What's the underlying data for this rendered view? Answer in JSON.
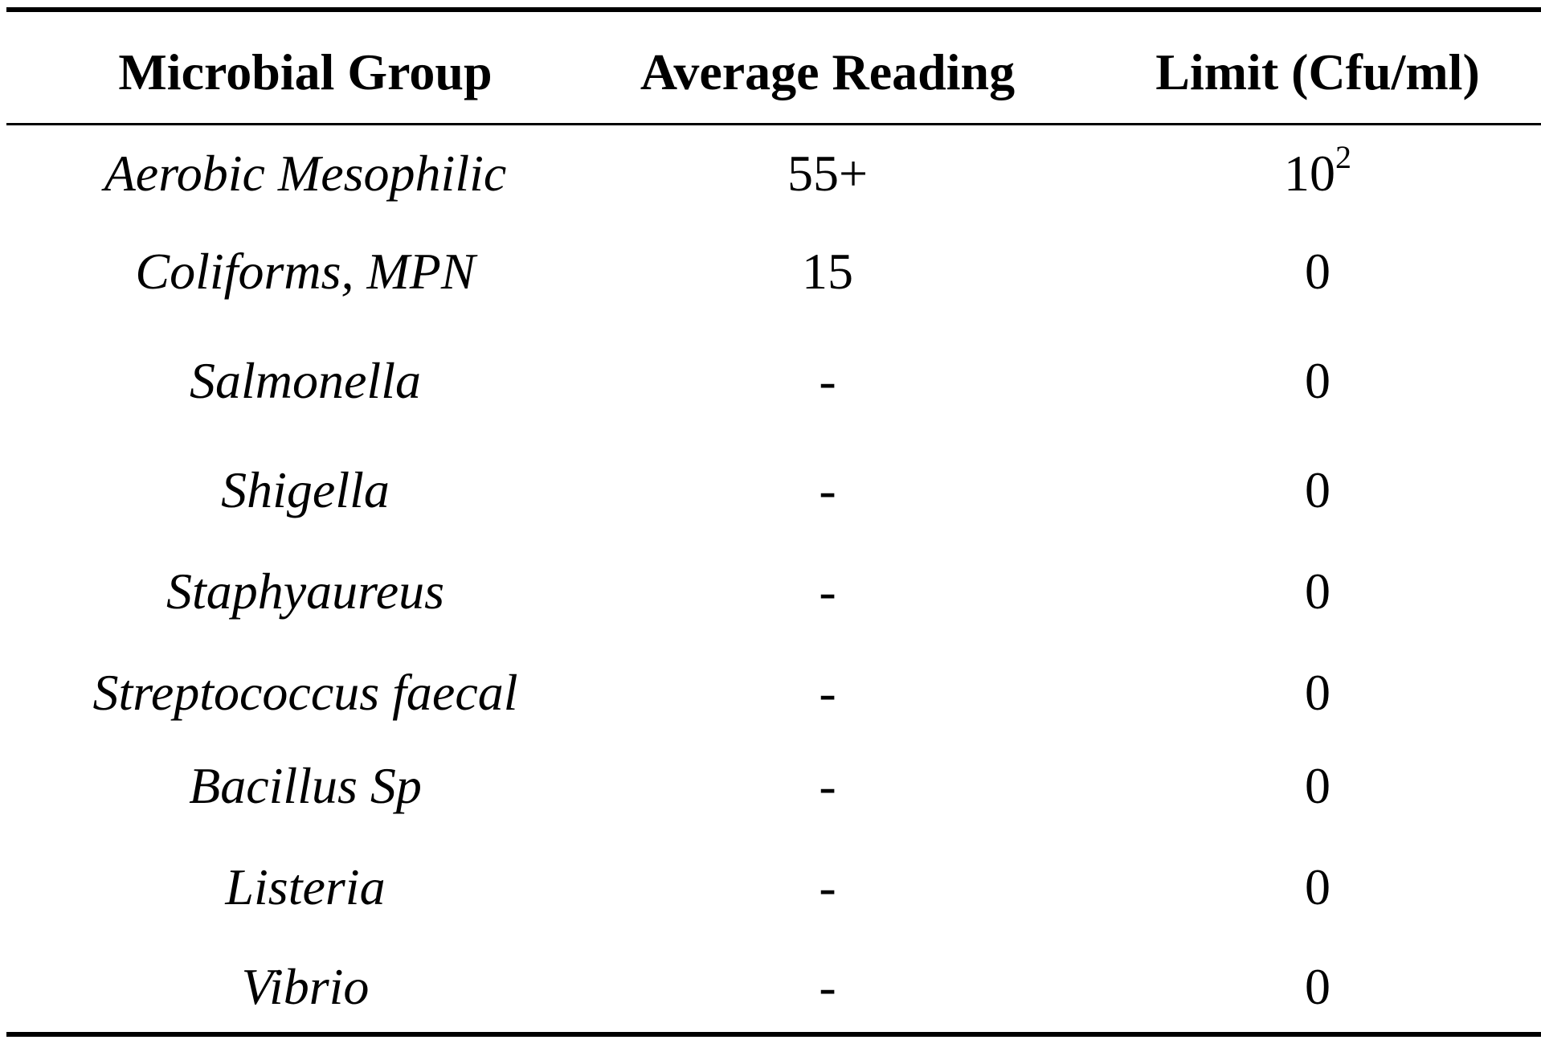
{
  "table": {
    "headers": [
      "Microbial Group",
      "Average Reading",
      "Limit (Cfu/ml)"
    ],
    "rows": [
      {
        "group": "Aerobic Mesophilic",
        "reading": "55+",
        "limit": "10",
        "limit_sup": "2"
      },
      {
        "group": "Coliforms, MPN",
        "reading": "15",
        "limit": "0"
      },
      {
        "group": "Salmonella",
        "reading": "-",
        "limit": "0"
      },
      {
        "group": "Shigella",
        "reading": "-",
        "limit": "0"
      },
      {
        "group": "Staphyaureus",
        "reading": "-",
        "limit": "0"
      },
      {
        "group": "Streptococcus faecal",
        "reading": "-",
        "limit": "0"
      },
      {
        "group": "Bacillus Sp",
        "reading": "-",
        "limit": "0"
      },
      {
        "group": "Listeria",
        "reading": "-",
        "limit": "0"
      },
      {
        "group": "Vibrio",
        "reading": "-",
        "limit": "0"
      }
    ]
  }
}
